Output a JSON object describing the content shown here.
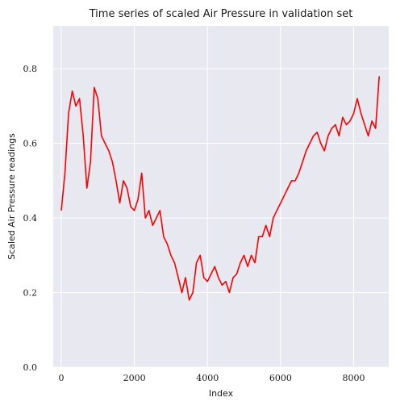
{
  "chart_data": {
    "type": "line",
    "title": "Time series of scaled Air Pressure in validation set",
    "xlabel": "Index",
    "ylabel": "Scaled Air Pressure readings",
    "xlim": [
      -220,
      8960
    ],
    "ylim": [
      0.0,
      0.915
    ],
    "xticks": [
      0,
      2000,
      4000,
      6000,
      8000
    ],
    "yticks": [
      0.0,
      0.2,
      0.4,
      0.6,
      0.8
    ],
    "xtick_labels": [
      "0",
      "2000",
      "4000",
      "6000",
      "8000"
    ],
    "ytick_labels": [
      "0.0",
      "0.2",
      "0.4",
      "0.6",
      "0.8"
    ],
    "grid": true,
    "background": "#e8e8f0",
    "grid_color": "#ffffff",
    "series": [
      {
        "color": "#ff0000",
        "x": [
          0,
          100,
          200,
          300,
          400,
          500,
          600,
          700,
          800,
          900,
          1000,
          1100,
          1200,
          1300,
          1400,
          1500,
          1600,
          1700,
          1800,
          1900,
          2000,
          2100,
          2200,
          2300,
          2400,
          2500,
          2600,
          2700,
          2800,
          2900,
          3000,
          3100,
          3200,
          3300,
          3400,
          3500,
          3600,
          3700,
          3800,
          3900,
          4000,
          4100,
          4200,
          4300,
          4400,
          4500,
          4600,
          4700,
          4800,
          4900,
          5000,
          5100,
          5200,
          5300,
          5400,
          5500,
          5600,
          5700,
          5800,
          5900,
          6000,
          6100,
          6200,
          6300,
          6400,
          6500,
          6600,
          6700,
          6800,
          6900,
          7000,
          7100,
          7200,
          7300,
          7400,
          7500,
          7600,
          7700,
          7800,
          7900,
          8000,
          8100,
          8200,
          8300,
          8400,
          8500,
          8600,
          8700
        ],
        "values": [
          0.42,
          0.52,
          0.68,
          0.74,
          0.7,
          0.72,
          0.62,
          0.48,
          0.55,
          0.75,
          0.72,
          0.62,
          0.6,
          0.58,
          0.55,
          0.5,
          0.44,
          0.5,
          0.48,
          0.43,
          0.42,
          0.45,
          0.52,
          0.4,
          0.42,
          0.38,
          0.4,
          0.42,
          0.35,
          0.33,
          0.3,
          0.28,
          0.24,
          0.2,
          0.24,
          0.18,
          0.2,
          0.28,
          0.3,
          0.24,
          0.23,
          0.25,
          0.27,
          0.24,
          0.22,
          0.23,
          0.2,
          0.24,
          0.25,
          0.28,
          0.3,
          0.27,
          0.3,
          0.28,
          0.35,
          0.35,
          0.38,
          0.35,
          0.4,
          0.42,
          0.44,
          0.46,
          0.48,
          0.5,
          0.5,
          0.52,
          0.55,
          0.58,
          0.6,
          0.62,
          0.63,
          0.6,
          0.58,
          0.62,
          0.64,
          0.65,
          0.62,
          0.67,
          0.65,
          0.66,
          0.68,
          0.72,
          0.68,
          0.65,
          0.62,
          0.66,
          0.64,
          0.78
        ]
      }
    ]
  }
}
